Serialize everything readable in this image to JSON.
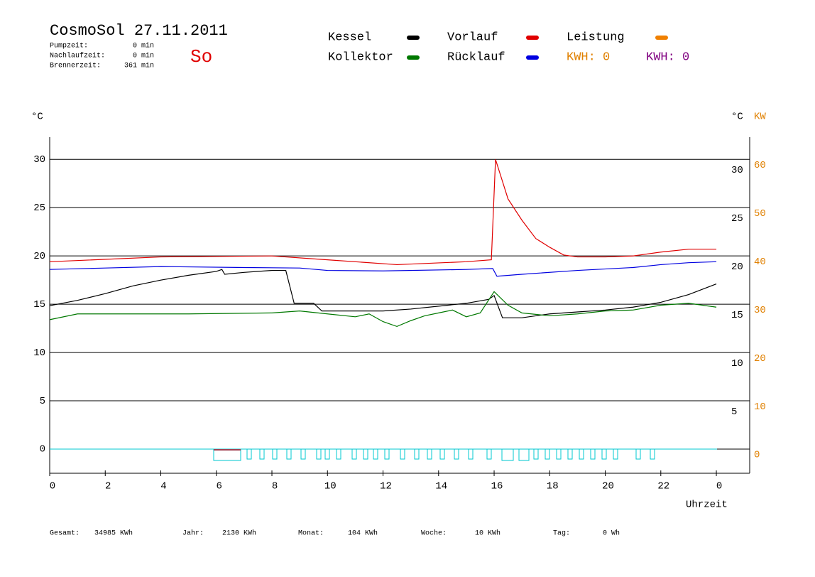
{
  "chart_data": {
    "type": "line",
    "title": "CosmoSol 27.11.2011",
    "day": "So",
    "y_label": "°C",
    "y2_label_left": "°C",
    "y2_label": "KW",
    "x_label": "Uhrzeit",
    "xlim": [
      0,
      25.2
    ],
    "xticks": [
      0,
      2,
      4,
      6,
      8,
      10,
      12,
      14,
      16,
      18,
      20,
      22,
      {
        "value": 24,
        "label": "0"
      }
    ],
    "ylim": [
      -2.5,
      32.3
    ],
    "yticks": [
      0,
      5,
      10,
      15,
      20,
      25,
      30
    ],
    "y2lim": [
      -5,
      64.6
    ],
    "y2ticks": [
      0,
      10,
      20,
      30,
      40,
      50,
      60
    ],
    "grid": true,
    "series": [
      {
        "name": "Kessel",
        "color": "#000000",
        "x": [
          0,
          1,
          2,
          3,
          4,
          5,
          6,
          6.2,
          6.3,
          7,
          8,
          8.5,
          8.8,
          9.5,
          9.8,
          11,
          12,
          13,
          14,
          15,
          15.8,
          16,
          16.3,
          17,
          18,
          19,
          20,
          21,
          22,
          23,
          24
        ],
        "values": [
          14.85,
          15.4,
          16.1,
          16.9,
          17.5,
          18.0,
          18.4,
          18.6,
          18.1,
          18.3,
          18.5,
          18.5,
          15.1,
          15.1,
          14.3,
          14.3,
          14.3,
          14.5,
          14.8,
          15.1,
          15.5,
          15.9,
          13.6,
          13.6,
          14.0,
          14.2,
          14.4,
          14.7,
          15.2,
          16.0,
          17.1
        ]
      },
      {
        "name": "Kollektor",
        "color": "#007800",
        "x": [
          0,
          1,
          5,
          8,
          9,
          10,
          11,
          11.5,
          12,
          12.5,
          13,
          13.5,
          14,
          14.5,
          15,
          15.5,
          16,
          16.5,
          17,
          18,
          19,
          20,
          21,
          22,
          23,
          24
        ],
        "values": [
          13.4,
          14.0,
          14.0,
          14.1,
          14.3,
          14.0,
          13.7,
          14.0,
          13.2,
          12.7,
          13.3,
          13.8,
          14.1,
          14.4,
          13.7,
          14.1,
          16.3,
          14.9,
          14.1,
          13.8,
          14.0,
          14.3,
          14.4,
          14.9,
          15.1,
          14.7
        ]
      },
      {
        "name": "Vorlauf",
        "color": "#e00000",
        "x": [
          0,
          4,
          8,
          10,
          12.5,
          15,
          15.9,
          16.05,
          16.5,
          17,
          17.5,
          18,
          18.5,
          19,
          20,
          21,
          22,
          23,
          24
        ],
        "values": [
          19.4,
          19.9,
          20.0,
          19.6,
          19.1,
          19.4,
          19.6,
          30.0,
          25.9,
          23.7,
          21.8,
          20.9,
          20.1,
          19.9,
          19.9,
          20.0,
          20.4,
          20.7,
          20.7
        ]
      },
      {
        "name": "Rücklauf",
        "color": "#0000e0",
        "x": [
          0,
          2,
          4,
          7,
          9,
          10,
          12,
          15,
          15.95,
          16.1,
          17,
          19,
          21,
          22,
          23,
          24
        ],
        "values": [
          18.6,
          18.75,
          18.9,
          18.8,
          18.75,
          18.5,
          18.45,
          18.6,
          18.7,
          17.9,
          18.1,
          18.5,
          18.8,
          19.1,
          19.3,
          19.4
        ]
      }
    ],
    "extra_legend": {
      "name": "Leistung",
      "color": "#f08000"
    },
    "kwh": [
      {
        "label": "KWH: 0",
        "color": "#e08000"
      },
      {
        "label": "KWH: 0",
        "color": "#800080"
      }
    ]
  },
  "info": [
    {
      "label": "Pumpzeit:",
      "value": "0 min"
    },
    {
      "label": "Nachlaufzeit:",
      "value": "0 min"
    },
    {
      "label": "Brennerzeit:",
      "value": "361 min"
    }
  ],
  "footer": [
    {
      "label": "Gesamt:",
      "value": "34985 KWh"
    },
    {
      "label": "Jahr:",
      "value": "2130 KWh"
    },
    {
      "label": "Monat:",
      "value": "104 KWh"
    },
    {
      "label": "Woche:",
      "value": "10 KWh"
    },
    {
      "label": "Tag:",
      "value": "0 Wh"
    }
  ]
}
